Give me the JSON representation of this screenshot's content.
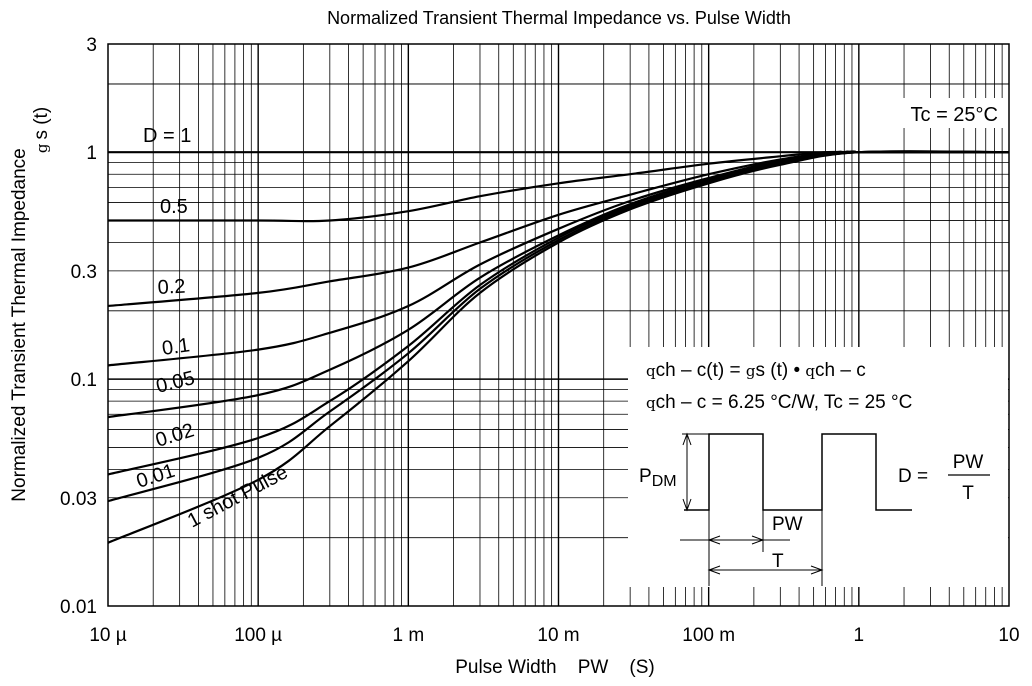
{
  "chart_data": {
    "type": "line",
    "title": "Normalized Transient Thermal Impedance vs. Pulse Width",
    "xlabel": "Pulse Width    PW    (S)",
    "ylabel_main": "Normalized Transient Thermal Impedance",
    "ylabel_sym": "g",
    "ylabel_sub": "s  (t)",
    "x_scale": "log",
    "y_scale": "log",
    "xlim": [
      1e-05,
      10
    ],
    "ylim": [
      0.01,
      3
    ],
    "grid": true,
    "x_ticks": [
      {
        "value": 1e-05,
        "label": "10 µ"
      },
      {
        "value": 0.0001,
        "label": "100 µ"
      },
      {
        "value": 0.001,
        "label": "1 m"
      },
      {
        "value": 0.01,
        "label": "10 m"
      },
      {
        "value": 0.1,
        "label": "100 m"
      },
      {
        "value": 1,
        "label": "1"
      },
      {
        "value": 10,
        "label": "10"
      }
    ],
    "y_ticks": [
      {
        "value": 0.01,
        "label": "0.01"
      },
      {
        "value": 0.03,
        "label": "0.03"
      },
      {
        "value": 0.1,
        "label": "0.1"
      },
      {
        "value": 0.3,
        "label": "0.3"
      },
      {
        "value": 1,
        "label": "1"
      },
      {
        "value": 3,
        "label": "3"
      }
    ],
    "condition_label": "Tc = 25°C",
    "series": [
      {
        "name": "D = 1",
        "x": [
          1e-05,
          10
        ],
        "y": [
          1.0,
          1.0
        ]
      },
      {
        "name": "0.5",
        "x": [
          1e-05,
          0.0001,
          0.0003,
          0.001,
          0.003,
          0.01,
          0.03,
          0.1,
          0.3,
          0.6,
          1.0,
          10
        ],
        "y": [
          0.5,
          0.5,
          0.5,
          0.55,
          0.64,
          0.73,
          0.8,
          0.89,
          0.96,
          1.0,
          1.0,
          1.0
        ]
      },
      {
        "name": "0.2",
        "x": [
          1e-05,
          0.0001,
          0.0003,
          0.001,
          0.003,
          0.01,
          0.03,
          0.1,
          0.3,
          0.7,
          1.0,
          10
        ],
        "y": [
          0.21,
          0.24,
          0.27,
          0.31,
          0.4,
          0.53,
          0.65,
          0.8,
          0.93,
          1.0,
          1.0,
          1.0
        ]
      },
      {
        "name": "0.1",
        "x": [
          1e-05,
          0.0001,
          0.0003,
          0.001,
          0.003,
          0.01,
          0.03,
          0.1,
          0.3,
          0.8,
          1.0,
          10
        ],
        "y": [
          0.115,
          0.135,
          0.16,
          0.21,
          0.32,
          0.46,
          0.61,
          0.77,
          0.92,
          1.0,
          1.0,
          1.0
        ]
      },
      {
        "name": "0.05",
        "x": [
          1e-05,
          0.0001,
          0.0003,
          0.001,
          0.003,
          0.01,
          0.03,
          0.1,
          0.3,
          0.9,
          1.0,
          10
        ],
        "y": [
          0.068,
          0.085,
          0.11,
          0.165,
          0.28,
          0.43,
          0.59,
          0.76,
          0.91,
          1.0,
          1.0,
          1.0
        ]
      },
      {
        "name": "0.02",
        "x": [
          1e-05,
          0.0001,
          0.0003,
          0.001,
          0.003,
          0.01,
          0.03,
          0.1,
          0.3,
          1.0,
          10
        ],
        "y": [
          0.038,
          0.055,
          0.08,
          0.14,
          0.26,
          0.42,
          0.58,
          0.75,
          0.9,
          1.0,
          1.0
        ]
      },
      {
        "name": "0.01",
        "x": [
          1e-05,
          0.0001,
          0.0003,
          0.001,
          0.003,
          0.01,
          0.03,
          0.1,
          0.3,
          1.0,
          10
        ],
        "y": [
          0.029,
          0.045,
          0.072,
          0.13,
          0.25,
          0.41,
          0.57,
          0.74,
          0.89,
          1.0,
          1.0
        ]
      },
      {
        "name": "1 shot Pulse",
        "x": [
          1e-05,
          0.0001,
          0.0003,
          0.001,
          0.003,
          0.01,
          0.03,
          0.1,
          0.3,
          1.0,
          10
        ],
        "y": [
          0.019,
          0.036,
          0.062,
          0.12,
          0.24,
          0.4,
          0.56,
          0.73,
          0.88,
          1.0,
          1.0
        ]
      }
    ],
    "inset": {
      "formula_line1": "ch – c(t) = ",
      "formula_line1_b": "s (t) • ",
      "formula_line1_c": "ch – c",
      "formula_line2": "ch – c = 6.25 °C/W, Tc = 25 °C",
      "theta_symbol": "q",
      "gamma_symbol": "g",
      "pdm_label": "P",
      "pdm_sub": "DM",
      "pw_label": "PW",
      "t_label": "T",
      "duty_lhs": "D = ",
      "duty_num": "PW",
      "duty_den": "T"
    }
  }
}
